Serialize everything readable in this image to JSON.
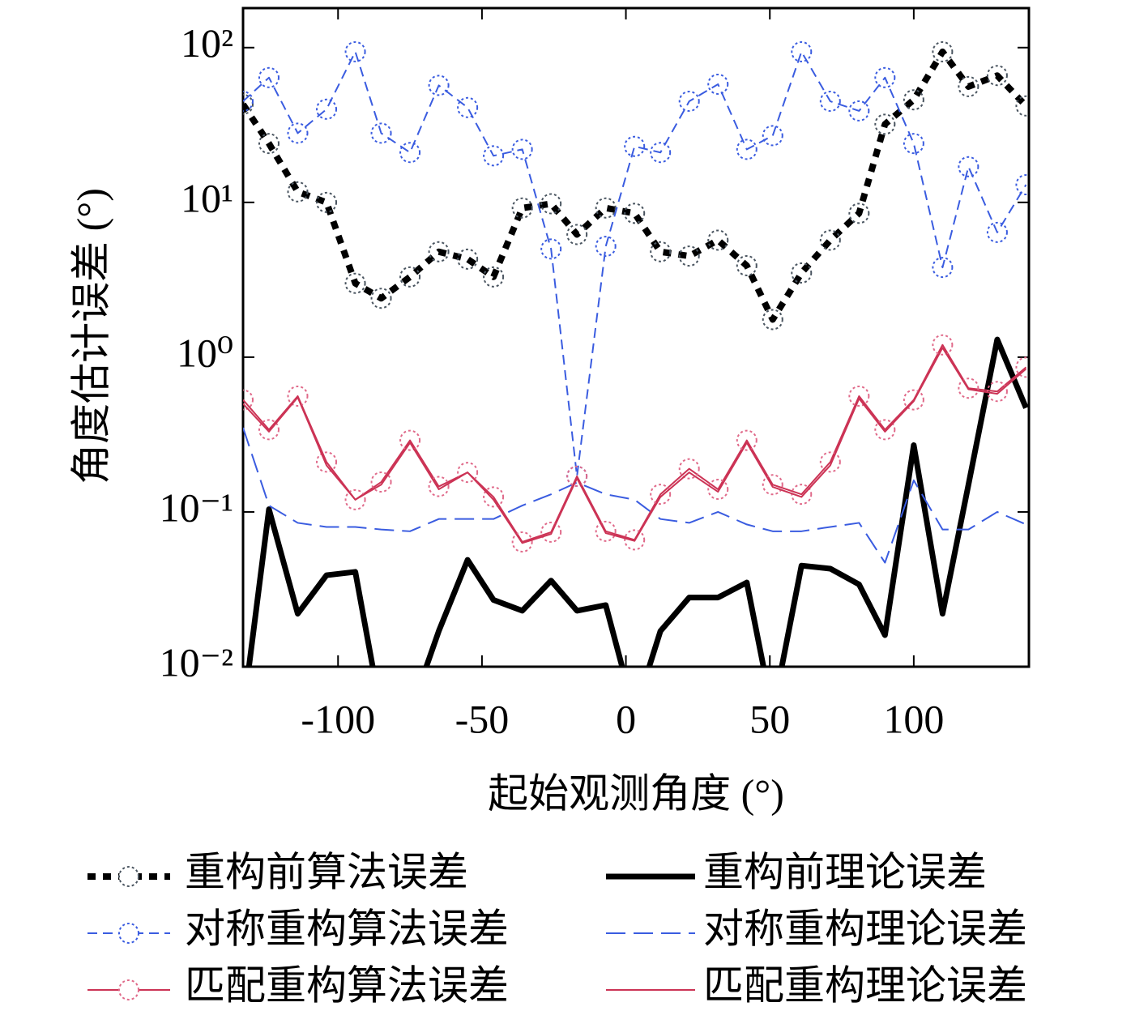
{
  "chart_data": {
    "type": "line",
    "xlabel": "起始观测角度 (°)",
    "ylabel": "角度估计误差 (°)",
    "x": [
      -133,
      -124,
      -114,
      -104,
      -94,
      -85,
      -75,
      -65,
      -55,
      -46,
      -36,
      -26,
      -17,
      -7,
      3,
      12,
      22,
      32,
      42,
      51,
      61,
      71,
      81,
      90,
      100,
      110,
      119,
      129,
      139
    ],
    "xlim": [
      -133,
      140
    ],
    "xticks": [
      -100,
      -50,
      0,
      50,
      100
    ],
    "ylim": [
      0.01,
      180
    ],
    "yscale": "log",
    "yticks": [
      {
        "value": 0.01,
        "label": "10⁻²"
      },
      {
        "value": 0.1,
        "label": "10⁻¹"
      },
      {
        "value": 1,
        "label": "10⁰"
      },
      {
        "value": 10,
        "label": "10¹"
      },
      {
        "value": 100,
        "label": "10²"
      }
    ],
    "legend": "below",
    "series": [
      {
        "name": "重构前算法误差",
        "color": "#000000",
        "line": "dashed-bold",
        "marker": "circle",
        "marker_color": "#4a5560",
        "values": [
          43,
          24,
          11.7,
          10,
          3.0,
          2.4,
          3.3,
          4.8,
          4.3,
          3.3,
          9.2,
          9.8,
          6.2,
          9.2,
          8.5,
          4.8,
          4.5,
          5.7,
          3.9,
          1.75,
          3.5,
          5.7,
          8.5,
          32,
          46,
          94,
          56,
          66,
          42
        ]
      },
      {
        "name": "重构前理论误差",
        "color": "#000000",
        "line": "solid-bold",
        "values": [
          0.005,
          0.104,
          0.022,
          0.039,
          0.041,
          0.005,
          0.005,
          0.017,
          0.049,
          0.027,
          0.023,
          0.036,
          0.023,
          0.025,
          0.005,
          0.017,
          0.028,
          0.028,
          0.035,
          0.005,
          0.045,
          0.043,
          0.034,
          0.016,
          0.27,
          0.022,
          0.15,
          1.3,
          0.47
        ]
      },
      {
        "name": "对称重构算法误差",
        "color": "#3a5ce0",
        "line": "dashed",
        "marker": "circle",
        "marker_color": "#3a5ce0",
        "values": [
          45,
          64,
          28,
          40,
          94,
          28,
          21,
          57,
          41,
          20,
          22,
          5.0,
          0.17,
          5.2,
          23,
          21,
          45,
          58,
          22,
          27,
          94,
          45,
          39,
          64,
          24,
          3.8,
          17,
          6.4,
          13
        ]
      },
      {
        "name": "对称重构理论误差",
        "color": "#3a5ce0",
        "line": "long-dashed",
        "values": [
          0.35,
          0.11,
          0.085,
          0.08,
          0.08,
          0.077,
          0.075,
          0.09,
          0.09,
          0.09,
          0.11,
          0.13,
          0.155,
          0.13,
          0.12,
          0.09,
          0.085,
          0.1,
          0.083,
          0.075,
          0.075,
          0.08,
          0.085,
          0.047,
          0.16,
          0.077,
          0.077,
          0.1,
          0.083
        ]
      },
      {
        "name": "匹配重构算法误差",
        "color": "#cc3355",
        "line": "solid",
        "marker": "circle",
        "marker_color": "#e06a8a",
        "values": [
          0.53,
          0.34,
          0.56,
          0.21,
          0.12,
          0.156,
          0.29,
          0.146,
          0.18,
          0.125,
          0.064,
          0.074,
          0.17,
          0.075,
          0.066,
          0.13,
          0.19,
          0.14,
          0.29,
          0.15,
          0.13,
          0.21,
          0.56,
          0.34,
          0.53,
          1.2,
          0.63,
          0.6,
          0.86
        ]
      },
      {
        "name": "匹配重构理论误差",
        "color": "#cc3355",
        "line": "solid",
        "values": [
          0.5,
          0.33,
          0.55,
          0.2,
          0.12,
          0.15,
          0.28,
          0.14,
          0.18,
          0.12,
          0.063,
          0.072,
          0.165,
          0.073,
          0.065,
          0.125,
          0.18,
          0.135,
          0.28,
          0.145,
          0.125,
          0.2,
          0.54,
          0.33,
          0.52,
          1.15,
          0.62,
          0.58,
          0.84
        ]
      }
    ]
  }
}
